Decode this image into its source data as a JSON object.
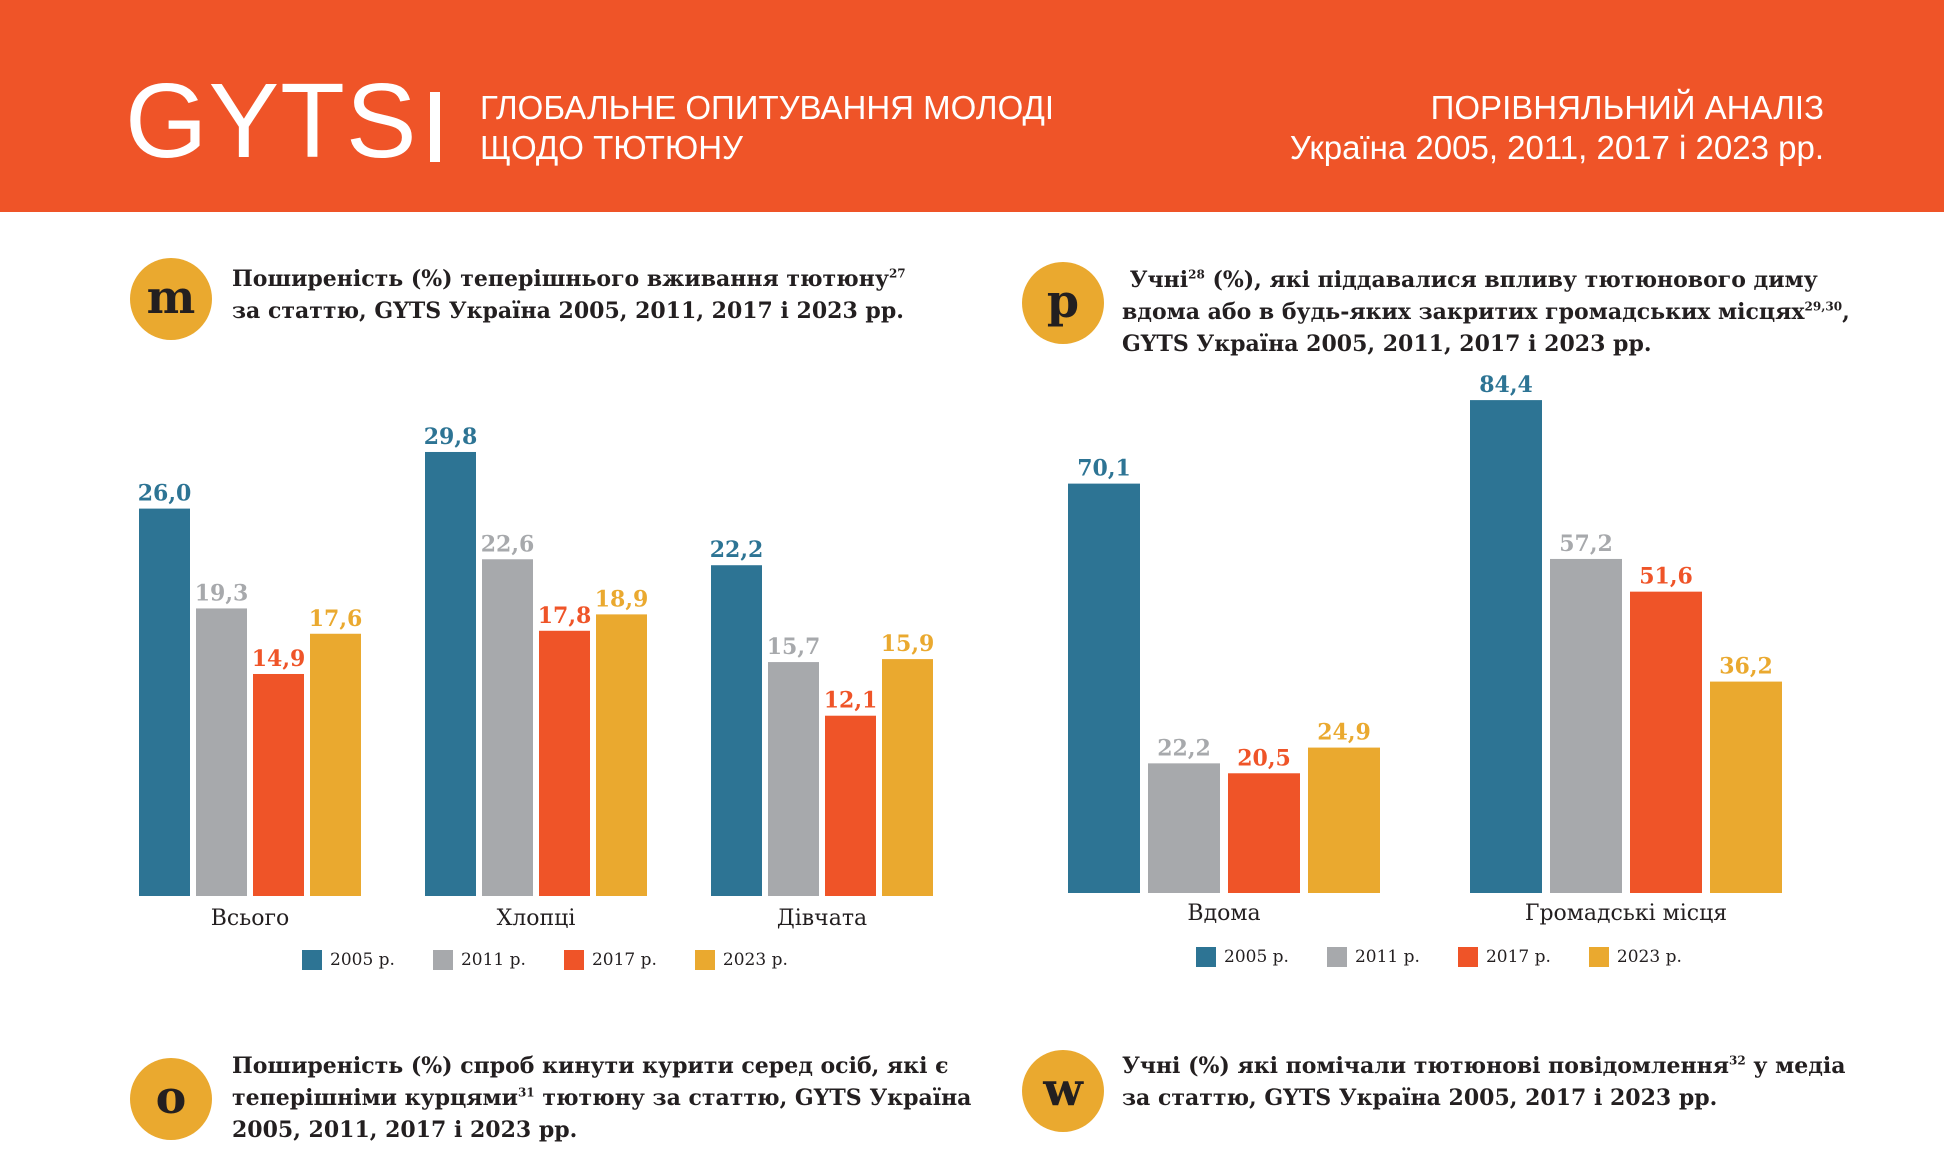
{
  "header": {
    "brand": "GYTS",
    "subtitle_line1": "ГЛОБАЛЬНЕ ОПИТУВАННЯ МОЛОДІ",
    "subtitle_line2": "ЩОДО ТЮТЮНУ",
    "right_line1": "ПОРІВНЯЛЬНИЙ АНАЛІЗ",
    "right_line2": "Україна 2005, 2011, 2017 і 2023 рр."
  },
  "colors": {
    "2005": "#2d7494",
    "2011": "#a7a9ac",
    "2017": "#ef5428",
    "2023": "#eaa92f",
    "header": "#ef5428",
    "badge": "#eaa92f"
  },
  "panels": {
    "m": {
      "badge": "m",
      "title_line1": "Поширеність (%) теперішнього вживання тютюну",
      "title_sup1": "27",
      "title_line2": "за статтю, GYTS Україна 2005, 2011, 2017 і 2023 рр."
    },
    "p": {
      "badge": "p",
      "title_line1_pre": "Учні",
      "title_sup1": "28",
      "title_line1_post": " (%), які піддавалися впливу тютюнового диму",
      "title_line2": "вдома або в будь-яких закритих громадських місцях",
      "title_sup2": "29,30",
      "title_line2_post": ",",
      "title_line3": "GYTS Україна 2005, 2011, 2017 і 2023 рр."
    },
    "o": {
      "badge": "o",
      "title_line1": "Поширеність (%) спроб кинути курити серед осіб, які є",
      "title_line2_pre": "теперішніми курцями",
      "title_sup": "31",
      "title_line2_post": " тютюну за статтю, GYTS Україна",
      "title_line3": "2005, 2011, 2017 і 2023 рр."
    },
    "w": {
      "badge": "w",
      "title_line1_pre": "Учні (%) які помічали тютюнові повідомлення",
      "title_sup": "32",
      "title_line1_post": " у медіа",
      "title_line2": "за статтю, GYTS Україна 2005, 2017 і 2023 рр."
    }
  },
  "legend": [
    "2005 р.",
    "2011 р.",
    "2017 р.",
    "2023 р."
  ],
  "chart_data": [
    {
      "id": "m",
      "type": "bar",
      "title": "Поширеність (%) теперішнього вживання тютюну за статтю, GYTS Україна 2005, 2011, 2017 і 2023 рр.",
      "categories": [
        "Всього",
        "Хлопці",
        "Дівчата"
      ],
      "series": [
        {
          "name": "2005 р.",
          "values": [
            26.0,
            29.8,
            22.2
          ],
          "labels": [
            "26,0",
            "29,8",
            "22,2"
          ]
        },
        {
          "name": "2011 р.",
          "values": [
            19.3,
            22.6,
            15.7
          ],
          "labels": [
            "19,3",
            "22,6",
            "15,7"
          ]
        },
        {
          "name": "2017 р.",
          "values": [
            14.9,
            17.8,
            12.1
          ],
          "labels": [
            "14,9",
            "17,8",
            "12,1"
          ]
        },
        {
          "name": "2023 р.",
          "values": [
            17.6,
            18.9,
            15.9
          ],
          "labels": [
            "17,6",
            "18,9",
            "15,9"
          ]
        }
      ],
      "ylim": [
        0,
        30
      ],
      "legend_position": "bottom"
    },
    {
      "id": "p",
      "type": "bar",
      "title": "Учні (%), які піддавалися впливу тютюнового диму вдома або в будь-яких закритих громадських місцях, GYTS Україна 2005, 2011, 2017 і 2023 рр.",
      "categories": [
        "Вдома",
        "Громадські місця"
      ],
      "series": [
        {
          "name": "2005 р.",
          "values": [
            70.1,
            84.4
          ],
          "labels": [
            "70,1",
            "84,4"
          ]
        },
        {
          "name": "2011 р.",
          "values": [
            22.2,
            57.2
          ],
          "labels": [
            "22,2",
            "57,2"
          ]
        },
        {
          "name": "2017 р.",
          "values": [
            20.5,
            51.6
          ],
          "labels": [
            "20,5",
            "51,6"
          ]
        },
        {
          "name": "2023 р.",
          "values": [
            24.9,
            36.2
          ],
          "labels": [
            "24,9",
            "36,2"
          ]
        }
      ],
      "ylim": [
        0,
        85
      ],
      "legend_position": "bottom"
    }
  ]
}
